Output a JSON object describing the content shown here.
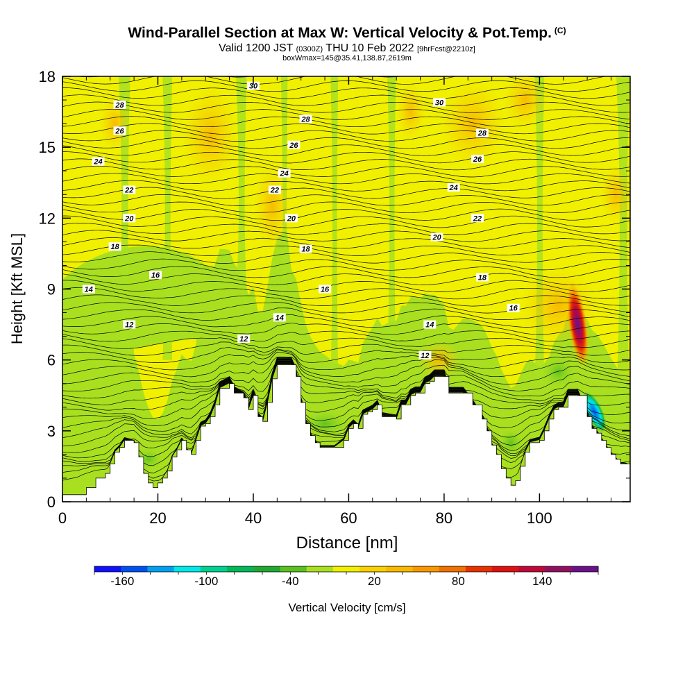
{
  "chart_data": {
    "type": "heatmap",
    "title": "Wind-Parallel Section at Max W: Vertical Velocity & Pot.Temp.",
    "title_mark": "(C)",
    "subtitle": {
      "valid": "Valid 1200 JST",
      "utc": "(0300Z)",
      "date": "THU 10 Feb 2022",
      "fcst": "[9hrFcst@2210z]"
    },
    "subtitle2": "boxWmax=145@35.41,138.87,2619m",
    "xlabel": "Distance [nm]",
    "ylabel": "Height [Kft MSL]",
    "xlim": [
      0,
      119
    ],
    "ylim": [
      0,
      18
    ],
    "x_ticks": [
      "0",
      "20",
      "40",
      "60",
      "80",
      "100"
    ],
    "x_tick_values": [
      0,
      20,
      40,
      60,
      80,
      100
    ],
    "y_ticks": [
      "0",
      "3",
      "6",
      "9",
      "12",
      "15",
      "18"
    ],
    "y_tick_values": [
      0,
      3,
      6,
      9,
      12,
      15,
      18
    ],
    "colorbar": {
      "label": "Vertical Velocity [cm/s]",
      "min": -180,
      "max": 180,
      "step": 20,
      "tick_labels": [
        "-160",
        "-100",
        "-40",
        "20",
        "80",
        "140"
      ],
      "tick_values": [
        -160,
        -100,
        -40,
        20,
        80,
        140
      ],
      "colors": [
        "#1010ff",
        "#0050f0",
        "#00a0f0",
        "#00e8e8",
        "#00d090",
        "#00b858",
        "#20a830",
        "#58c020",
        "#a8e020",
        "#f0f000",
        "#f8d000",
        "#f8b800",
        "#f89800",
        "#f07000",
        "#e83000",
        "#e01010",
        "#c00838",
        "#901060",
        "#6a1088"
      ]
    },
    "terrain": {
      "unit": "Kft MSL",
      "points": [
        [
          0,
          0.3
        ],
        [
          3,
          0.3
        ],
        [
          5,
          0.6
        ],
        [
          7,
          1.0
        ],
        [
          9,
          1.2
        ],
        [
          10,
          1.6
        ],
        [
          11,
          2.1
        ],
        [
          12,
          2.3
        ],
        [
          13,
          2.6
        ],
        [
          15,
          2.5
        ],
        [
          16,
          1.9
        ],
        [
          17,
          1.2
        ],
        [
          18,
          0.8
        ],
        [
          19,
          0.6
        ],
        [
          20,
          0.8
        ],
        [
          21,
          1.0
        ],
        [
          22,
          1.3
        ],
        [
          23,
          1.9
        ],
        [
          24,
          2.2
        ],
        [
          25,
          2.6
        ],
        [
          26,
          2.2
        ],
        [
          27,
          2.0
        ],
        [
          28,
          2.6
        ],
        [
          29,
          3.2
        ],
        [
          30,
          3.3
        ],
        [
          31,
          3.6
        ],
        [
          32,
          4.1
        ],
        [
          33,
          4.8
        ],
        [
          35,
          5.0
        ],
        [
          36,
          4.6
        ],
        [
          38,
          4.4
        ],
        [
          39,
          3.9
        ],
        [
          40,
          4.5
        ],
        [
          41,
          3.6
        ],
        [
          42,
          3.4
        ],
        [
          43,
          4.2
        ],
        [
          44,
          5.2
        ],
        [
          45,
          5.8
        ],
        [
          48,
          5.8
        ],
        [
          49,
          5.3
        ],
        [
          50,
          4.2
        ],
        [
          51,
          3.3
        ],
        [
          52,
          2.8
        ],
        [
          53,
          2.5
        ],
        [
          54,
          2.3
        ],
        [
          57,
          2.3
        ],
        [
          59,
          2.6
        ],
        [
          60,
          3.1
        ],
        [
          61,
          3.3
        ],
        [
          62,
          3.1
        ],
        [
          63,
          3.7
        ],
        [
          64,
          3.8
        ],
        [
          65,
          3.9
        ],
        [
          66,
          4.1
        ],
        [
          67,
          3.6
        ],
        [
          70,
          3.5
        ],
        [
          71,
          4.1
        ],
        [
          72,
          4.1
        ],
        [
          73,
          4.5
        ],
        [
          74,
          4.6
        ],
        [
          75,
          4.6
        ],
        [
          76,
          5.0
        ],
        [
          77,
          5.1
        ],
        [
          78,
          5.3
        ],
        [
          80,
          5.3
        ],
        [
          81,
          4.6
        ],
        [
          84,
          4.6
        ],
        [
          86,
          4.1
        ],
        [
          88,
          3.5
        ],
        [
          89,
          3.0
        ],
        [
          90,
          2.4
        ],
        [
          91,
          2.0
        ],
        [
          92,
          1.4
        ],
        [
          93,
          1.0
        ],
        [
          94,
          0.7
        ],
        [
          95,
          0.9
        ],
        [
          96,
          1.5
        ],
        [
          97,
          2.1
        ],
        [
          98,
          2.5
        ],
        [
          100,
          2.6
        ],
        [
          101,
          3.0
        ],
        [
          102,
          3.5
        ],
        [
          103,
          3.9
        ],
        [
          104,
          4.0
        ],
        [
          105,
          4.0
        ],
        [
          106,
          4.5
        ],
        [
          108,
          4.5
        ],
        [
          110,
          3.6
        ],
        [
          111,
          3.1
        ],
        [
          112,
          2.9
        ],
        [
          113,
          2.6
        ],
        [
          114,
          2.3
        ],
        [
          115,
          2.0
        ],
        [
          116,
          1.8
        ],
        [
          117,
          1.6
        ],
        [
          118,
          1.6
        ],
        [
          119,
          1.5
        ]
      ]
    },
    "isentrope_labels": [
      {
        "text": "30",
        "x": 40,
        "y": 17.6
      },
      {
        "text": "28",
        "x": 12,
        "y": 16.8
      },
      {
        "text": "26",
        "x": 12,
        "y": 15.7
      },
      {
        "text": "24",
        "x": 7.5,
        "y": 14.4
      },
      {
        "text": "22",
        "x": 14,
        "y": 13.2
      },
      {
        "text": "20",
        "x": 14,
        "y": 12.0
      },
      {
        "text": "18",
        "x": 11,
        "y": 10.8
      },
      {
        "text": "16",
        "x": 19.5,
        "y": 9.6
      },
      {
        "text": "14",
        "x": 5.5,
        "y": 9.0
      },
      {
        "text": "12",
        "x": 14,
        "y": 7.5
      },
      {
        "text": "12",
        "x": 38,
        "y": 6.9
      },
      {
        "text": "14",
        "x": 45.5,
        "y": 7.8
      },
      {
        "text": "22",
        "x": 44.5,
        "y": 13.2
      },
      {
        "text": "24",
        "x": 46.5,
        "y": 13.9
      },
      {
        "text": "26",
        "x": 48.5,
        "y": 15.1
      },
      {
        "text": "28",
        "x": 51,
        "y": 16.2
      },
      {
        "text": "20",
        "x": 48,
        "y": 12.0
      },
      {
        "text": "18",
        "x": 51,
        "y": 10.7
      },
      {
        "text": "16",
        "x": 55,
        "y": 9.0
      },
      {
        "text": "30",
        "x": 79,
        "y": 16.9
      },
      {
        "text": "28",
        "x": 88,
        "y": 15.6
      },
      {
        "text": "26",
        "x": 87,
        "y": 14.5
      },
      {
        "text": "24",
        "x": 82,
        "y": 13.3
      },
      {
        "text": "22",
        "x": 87,
        "y": 12.0
      },
      {
        "text": "20",
        "x": 78.5,
        "y": 11.2
      },
      {
        "text": "18",
        "x": 88,
        "y": 9.5
      },
      {
        "text": "16",
        "x": 94.5,
        "y": 8.2
      },
      {
        "text": "14",
        "x": 77,
        "y": 7.5
      },
      {
        "text": "12",
        "x": 76,
        "y": 6.2
      }
    ],
    "max_updraft": {
      "x": 108,
      "y": 7.5,
      "value": 145
    }
  }
}
